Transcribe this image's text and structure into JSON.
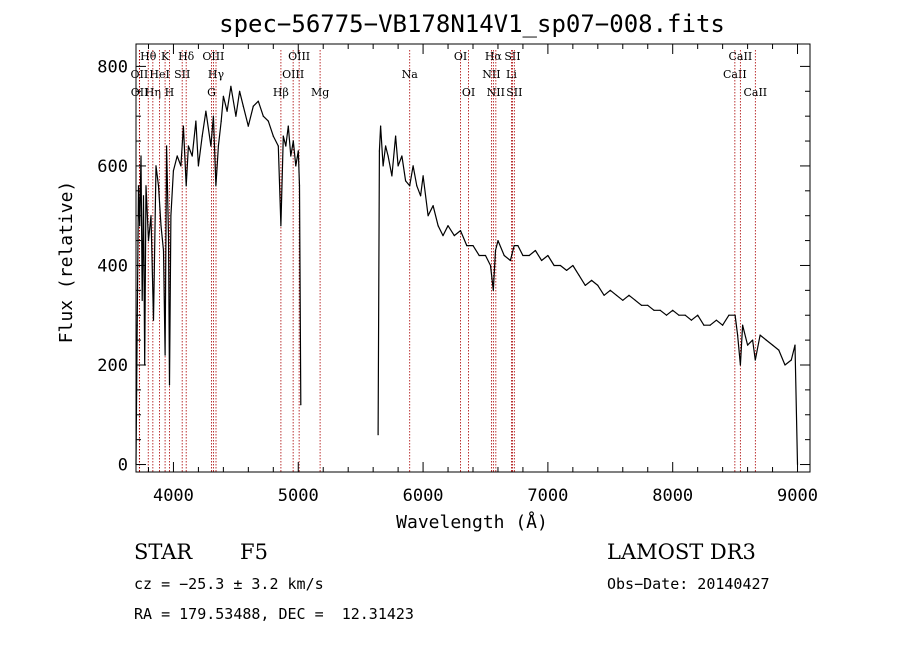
{
  "chart_data": {
    "type": "line",
    "title": "spec−56775−VB178N14V1_sp07−008.fits",
    "xlabel": "Wavelength (Å)",
    "ylabel": "Flux (relative)",
    "xlim": [
      3700,
      9100
    ],
    "ylim": [
      -15,
      845
    ],
    "xticks": [
      4000,
      5000,
      6000,
      7000,
      8000,
      9000
    ],
    "yticks": [
      0,
      200,
      400,
      600,
      800
    ],
    "grid": false,
    "gaps": [
      [
        5020,
        5640
      ]
    ],
    "series": [
      {
        "name": "flux",
        "x": [
          3700,
          3710,
          3720,
          3730,
          3740,
          3750,
          3760,
          3770,
          3780,
          3800,
          3820,
          3840,
          3860,
          3880,
          3900,
          3920,
          3933,
          3945,
          3960,
          3968,
          3980,
          4000,
          4030,
          4060,
          4080,
          4102,
          4120,
          4150,
          4180,
          4200,
          4230,
          4260,
          4300,
          4320,
          4340,
          4360,
          4383,
          4400,
          4430,
          4460,
          4500,
          4530,
          4560,
          4600,
          4640,
          4680,
          4720,
          4760,
          4800,
          4840,
          4861,
          4880,
          4900,
          4920,
          4940,
          4960,
          4980,
          5000,
          5010,
          5020,
          5640,
          5650,
          5660,
          5680,
          5700,
          5720,
          5750,
          5780,
          5800,
          5830,
          5860,
          5893,
          5920,
          5950,
          5980,
          6000,
          6040,
          6080,
          6120,
          6160,
          6200,
          6250,
          6300,
          6350,
          6400,
          6450,
          6500,
          6540,
          6563,
          6580,
          6600,
          6650,
          6700,
          6730,
          6760,
          6800,
          6850,
          6900,
          6950,
          7000,
          7050,
          7100,
          7150,
          7200,
          7250,
          7300,
          7350,
          7400,
          7450,
          7500,
          7550,
          7600,
          7650,
          7700,
          7750,
          7800,
          7850,
          7900,
          7950,
          8000,
          8050,
          8100,
          8150,
          8200,
          8250,
          8300,
          8350,
          8400,
          8450,
          8500,
          8520,
          8542,
          8560,
          8600,
          8640,
          8662,
          8700,
          8750,
          8800,
          8850,
          8900,
          8950,
          8980,
          9000
        ],
        "values": [
          0,
          280,
          560,
          480,
          620,
          330,
          540,
          200,
          560,
          450,
          500,
          290,
          600,
          560,
          480,
          430,
          220,
          640,
          460,
          160,
          500,
          590,
          620,
          600,
          680,
          560,
          640,
          620,
          690,
          600,
          660,
          710,
          640,
          700,
          560,
          640,
          690,
          740,
          710,
          760,
          700,
          750,
          720,
          680,
          720,
          730,
          700,
          690,
          660,
          640,
          480,
          660,
          640,
          680,
          620,
          650,
          600,
          630,
          560,
          120,
          60,
          630,
          680,
          600,
          640,
          620,
          580,
          660,
          600,
          620,
          570,
          560,
          600,
          560,
          540,
          580,
          500,
          520,
          480,
          460,
          480,
          460,
          470,
          440,
          440,
          420,
          420,
          400,
          350,
          430,
          450,
          420,
          410,
          440,
          440,
          420,
          420,
          430,
          410,
          420,
          400,
          400,
          390,
          400,
          380,
          360,
          370,
          360,
          340,
          350,
          340,
          330,
          340,
          330,
          320,
          320,
          310,
          310,
          300,
          310,
          300,
          300,
          290,
          300,
          280,
          280,
          290,
          280,
          300,
          300,
          260,
          200,
          280,
          240,
          250,
          210,
          260,
          250,
          240,
          230,
          200,
          210,
          240,
          0
        ]
      }
    ]
  },
  "spectral_lines": [
    {
      "label": "Hθ",
      "wave": 3798,
      "row": 0
    },
    {
      "label": "OII",
      "wave": 3727,
      "row": 1
    },
    {
      "label": "OII",
      "wave": 3729,
      "row": 2
    },
    {
      "label": "Hη",
      "wave": 3835,
      "row": 2
    },
    {
      "label": "HeI",
      "wave": 3889,
      "row": 1
    },
    {
      "label": "K",
      "wave": 3933,
      "row": 0
    },
    {
      "label": "H",
      "wave": 3968,
      "row": 2
    },
    {
      "label": "SII",
      "wave": 4070,
      "row": 1
    },
    {
      "label": "Hδ",
      "wave": 4102,
      "row": 0
    },
    {
      "label": "OIII",
      "wave": 4320,
      "row": 0
    },
    {
      "label": "Hγ",
      "wave": 4341,
      "row": 1
    },
    {
      "label": "G",
      "wave": 4305,
      "row": 2
    },
    {
      "label": "Hβ",
      "wave": 4861,
      "row": 2
    },
    {
      "label": "OIII",
      "wave": 4959,
      "row": 1
    },
    {
      "label": "OIII",
      "wave": 5007,
      "row": 0
    },
    {
      "label": "Mg",
      "wave": 5175,
      "row": 2
    },
    {
      "label": "Na",
      "wave": 5893,
      "row": 1
    },
    {
      "label": "OI",
      "wave": 6300,
      "row": 0
    },
    {
      "label": "OI",
      "wave": 6364,
      "row": 2
    },
    {
      "label": "NII",
      "wave": 6548,
      "row": 1
    },
    {
      "label": "Hα",
      "wave": 6563,
      "row": 0
    },
    {
      "label": "NII",
      "wave": 6583,
      "row": 2
    },
    {
      "label": "SII",
      "wave": 6716,
      "row": 0
    },
    {
      "label": "Li",
      "wave": 6708,
      "row": 1
    },
    {
      "label": "SII",
      "wave": 6731,
      "row": 2
    },
    {
      "label": "CaII",
      "wave": 8498,
      "row": 1
    },
    {
      "label": "CaII",
      "wave": 8542,
      "row": 0
    },
    {
      "label": "CaII",
      "wave": 8662,
      "row": 2
    }
  ],
  "info": {
    "class": "STAR",
    "subclass": "F5",
    "survey": "LAMOST DR3",
    "cz": "cz = −25.3 ± 3.2 km/s",
    "obs_date": "Obs−Date: 20140427",
    "coords": "RA = 179.53488, DEC =  12.31423"
  }
}
